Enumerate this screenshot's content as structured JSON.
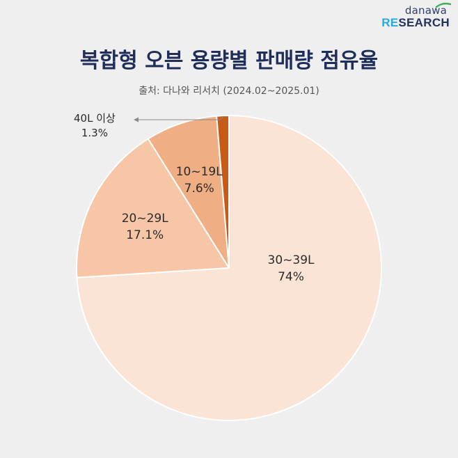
{
  "logo": {
    "top": "danawa",
    "re": "RE",
    "rest": "SEARCH"
  },
  "title": "복합형 오븐 용량별 판매량 점유율",
  "source": "출처: 다나와 리서치 (2024.02~2025.01)",
  "chart_data": {
    "type": "pie",
    "title": "복합형 오븐 용량별 판매량 점유율",
    "start": "12 o'clock",
    "direction": "clockwise",
    "slices": [
      {
        "label": "30~39L",
        "value": 74,
        "display": "74%",
        "color": "#fbe3d5"
      },
      {
        "label": "20~29L",
        "value": 17.1,
        "display": "17.1%",
        "color": "#f6c6a6"
      },
      {
        "label": "10~19L",
        "value": 7.6,
        "display": "7.6%",
        "color": "#efae83"
      },
      {
        "label": "40L 이상",
        "value": 1.3,
        "display": "1.3%",
        "color": "#c65a16"
      }
    ],
    "slice_border": "#ffffff"
  }
}
